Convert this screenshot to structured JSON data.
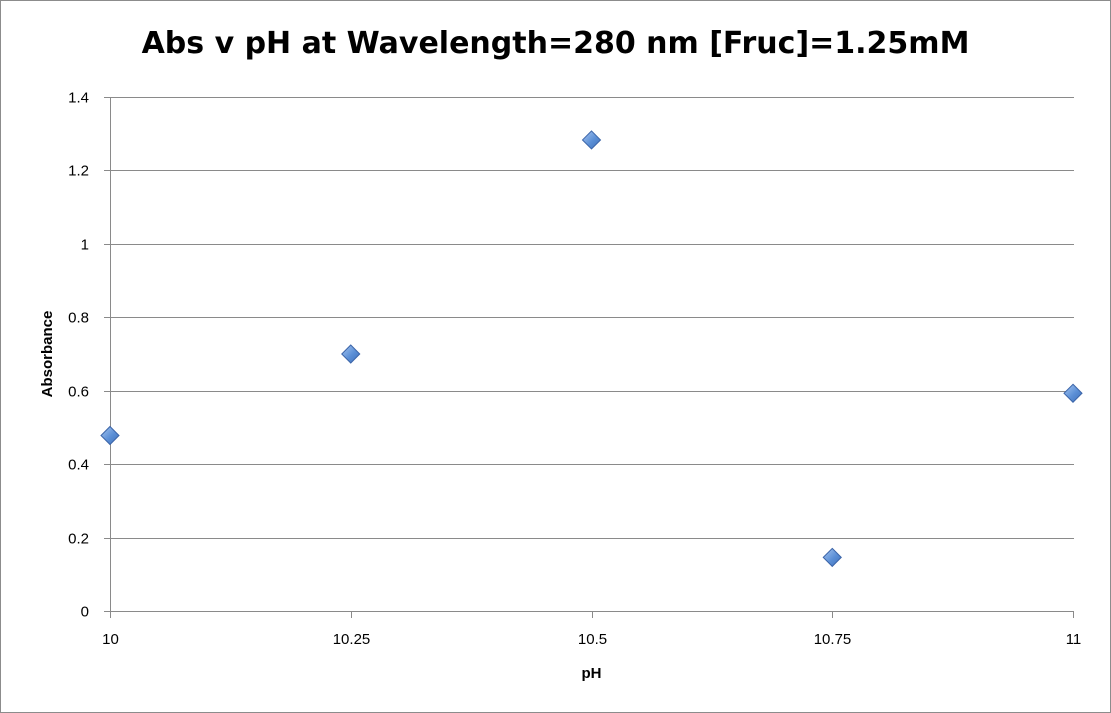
{
  "chart_data": {
    "type": "scatter",
    "title": "Abs v pH at Wavelength=280 nm [Fruc]=1.25mM",
    "xlabel": "pH",
    "ylabel": "Absorbance",
    "xlim": [
      10,
      11
    ],
    "ylim": [
      0,
      1.4
    ],
    "x_ticks": [
      10,
      10.25,
      10.5,
      10.75,
      11
    ],
    "x_tick_labels": [
      "10",
      "10.25",
      "10.5",
      "10.75",
      "11"
    ],
    "y_ticks": [
      0,
      0.2,
      0.4,
      0.6,
      0.8,
      1,
      1.2,
      1.4
    ],
    "y_tick_labels": [
      "0",
      "0.2",
      "0.4",
      "0.6",
      "0.8",
      "1",
      "1.2",
      "1.4"
    ],
    "grid": "horizontal",
    "legend": "none",
    "marker": "diamond",
    "marker_color": "#5b8fd6",
    "series": [
      {
        "x": [
          10,
          10.25,
          10.5,
          10.75,
          11
        ],
        "y": [
          0.478,
          0.7,
          1.283,
          0.146,
          0.593
        ]
      }
    ]
  }
}
